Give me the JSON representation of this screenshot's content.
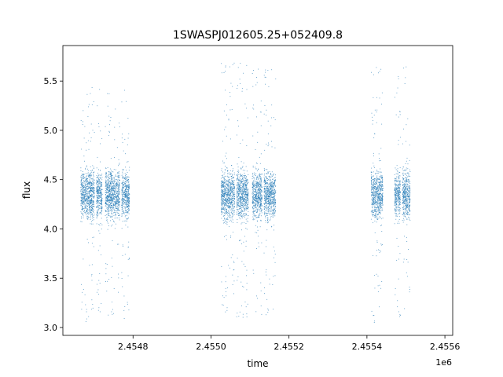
{
  "chart_data": {
    "type": "scatter",
    "title": "1SWASPJ012605.25+052409.8",
    "xlabel": "time",
    "ylabel": "flux",
    "x_offset_label": "1e6",
    "xlim": [
      2454620,
      2455620
    ],
    "ylim": [
      2.92,
      5.86
    ],
    "xticks": [
      2.4548,
      2.455,
      2.4552,
      2.4554,
      2.4556
    ],
    "xtick_labels": [
      "2.4548",
      "2.4550",
      "2.4552",
      "2.4554",
      "2.4556"
    ],
    "yticks": [
      3.0,
      3.5,
      4.0,
      4.5,
      5.0,
      5.5
    ],
    "ytick_labels": [
      "3.0",
      "3.5",
      "4.0",
      "4.5",
      "5.0",
      "5.5"
    ],
    "grid": false,
    "marker_color": "#1f77b4",
    "series": [
      {
        "x_ranges": [
          [
            2454665,
            2454700
          ],
          [
            2454705,
            2454720
          ],
          [
            2454728,
            2454765
          ],
          [
            2454770,
            2454790
          ]
        ],
        "y_center": 4.35,
        "y_core_spread": 0.45,
        "y_outlier_range": [
          3.05,
          5.45
        ]
      },
      {
        "x_ranges": [
          [
            2455025,
            2455060
          ],
          [
            2455065,
            2455095
          ],
          [
            2455105,
            2455130
          ],
          [
            2455135,
            2455165
          ]
        ],
        "y_center": 4.35,
        "y_core_spread": 0.45,
        "y_outlier_range": [
          3.1,
          5.7
        ]
      },
      {
        "x_ranges": [
          [
            2455410,
            2455440
          ],
          [
            2455470,
            2455485
          ],
          [
            2455490,
            2455510
          ]
        ],
        "y_center": 4.35,
        "y_core_spread": 0.45,
        "y_outlier_range": [
          3.05,
          5.65
        ]
      }
    ]
  }
}
